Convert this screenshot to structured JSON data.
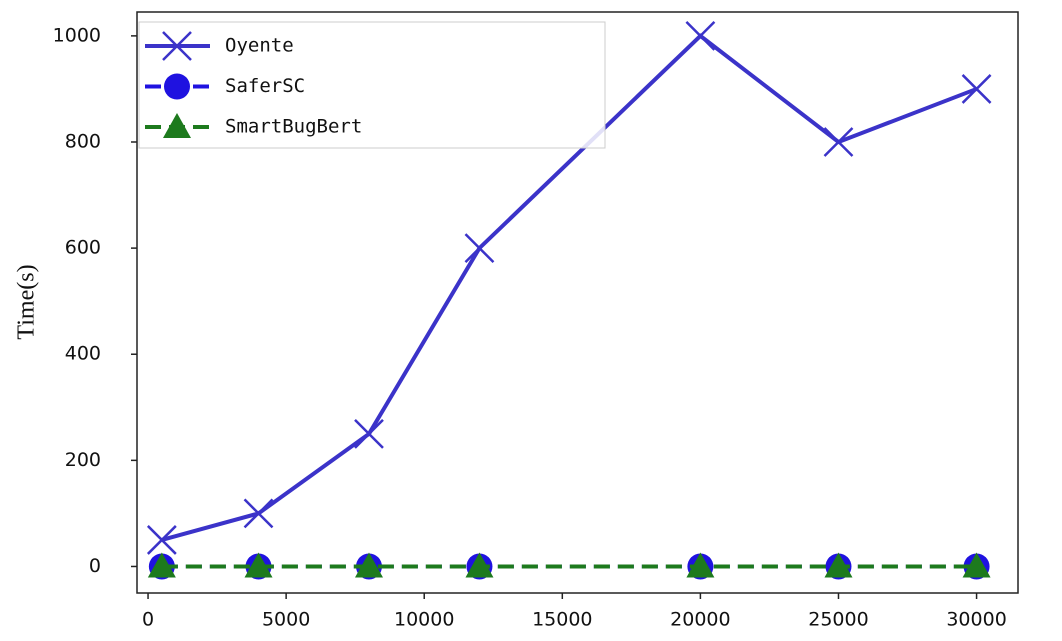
{
  "chart_data": {
    "type": "line",
    "y_label": "Time(s)",
    "x": [
      500,
      4000,
      8000,
      12000,
      20000,
      25000,
      30000
    ],
    "series": [
      {
        "name": "Oyente",
        "color": "#3b33c9",
        "marker": "x",
        "dashed": false,
        "values": [
          50,
          100,
          250,
          600,
          1000,
          800,
          900
        ]
      },
      {
        "name": "SaferSC",
        "color": "#1f12e0",
        "marker": "circle",
        "dashed": true,
        "values": [
          0,
          0,
          0,
          0,
          0,
          0,
          0
        ]
      },
      {
        "name": "SmartBugBert",
        "color": "#1d7a1d",
        "marker": "triangle",
        "dashed": true,
        "values": [
          0,
          0,
          0,
          0,
          0,
          0,
          0
        ]
      }
    ],
    "xlim": [
      -400,
      31500
    ],
    "ylim": [
      -50,
      1045
    ],
    "xticks": [
      0,
      5000,
      10000,
      15000,
      20000,
      25000,
      30000
    ],
    "yticks": [
      0,
      200,
      400,
      600,
      800,
      1000
    ],
    "legend": "upper left"
  }
}
